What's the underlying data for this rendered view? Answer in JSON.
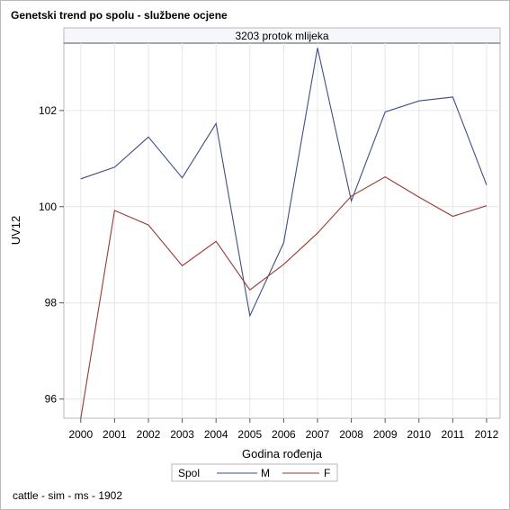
{
  "chart_data": {
    "type": "line",
    "title": "Genetski trend po spolu - službene ocjene",
    "panel_label": "3203 protok mlijeka",
    "xlabel": "Godina rođenja",
    "ylabel": "UV12",
    "x": [
      2000,
      2001,
      2002,
      2003,
      2004,
      2005,
      2006,
      2007,
      2008,
      2009,
      2010,
      2011,
      2012
    ],
    "xlim": [
      1999.5,
      2012.4
    ],
    "ylim": [
      95.6,
      103.4
    ],
    "yticks": [
      96,
      98,
      100,
      102
    ],
    "grid": true,
    "legend": {
      "title": "Spol",
      "position": "bottom-center"
    },
    "series": [
      {
        "name": "M",
        "color": "#3e4f85",
        "values": [
          100.58,
          100.82,
          101.45,
          100.6,
          101.73,
          97.73,
          99.25,
          103.3,
          100.12,
          101.97,
          102.2,
          102.28,
          100.45
        ]
      },
      {
        "name": "F",
        "color": "#9a3a32",
        "values": [
          95.6,
          99.92,
          99.62,
          98.77,
          99.28,
          98.27,
          98.8,
          99.45,
          100.22,
          100.62,
          100.2,
          99.8,
          100.02
        ]
      }
    ]
  },
  "footnote": "cattle - sim - ms - 1902"
}
